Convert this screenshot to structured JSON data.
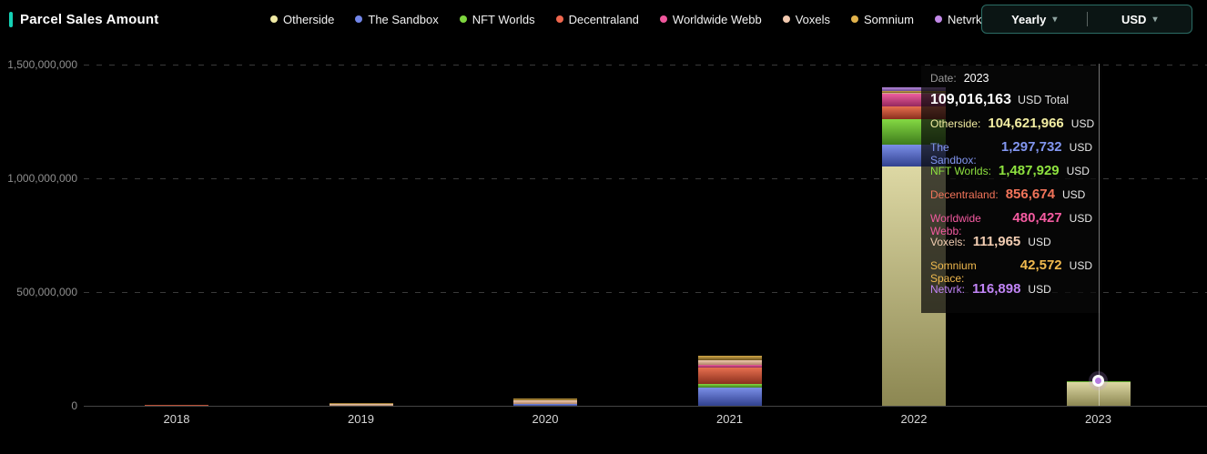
{
  "header": {
    "title": "Parcel Sales Amount",
    "accent_color": "#15d1b5",
    "legend": [
      {
        "label": "Otherside",
        "color": "#f0eaa4"
      },
      {
        "label": "The Sandbox",
        "color": "#7286e9"
      },
      {
        "label": "NFT Worlds",
        "color": "#7ed63e"
      },
      {
        "label": "Decentraland",
        "color": "#f0674e"
      },
      {
        "label": "Worldwide Webb",
        "color": "#f0579c"
      },
      {
        "label": "Voxels",
        "color": "#f3cab0"
      },
      {
        "label": "Somnium",
        "color": "#e2b34c"
      },
      {
        "label": "Netvrk",
        "color": "#c289e8"
      }
    ],
    "controls": {
      "period": "Yearly",
      "currency": "USD",
      "caret": "▾",
      "divider": "|"
    }
  },
  "chart_data": {
    "type": "bar",
    "stacked": true,
    "title": "Parcel Sales Amount",
    "categories": [
      "2018",
      "2019",
      "2020",
      "2021",
      "2022",
      "2023"
    ],
    "series": [
      {
        "name": "Otherside",
        "color_top": "#ddd8a4",
        "color_bottom": "#8c8752",
        "values": [
          0,
          0,
          0,
          0,
          1052000000,
          104621966
        ]
      },
      {
        "name": "The Sandbox",
        "color_top": "#7b8fe8",
        "color_bottom": "#31418f",
        "values": [
          0,
          0,
          8000000,
          80000000,
          96000000,
          1297732
        ]
      },
      {
        "name": "NFT Worlds",
        "color_top": "#84d943",
        "color_bottom": "#3f7d1d",
        "values": [
          0,
          0,
          0,
          16000000,
          112000000,
          1487929
        ]
      },
      {
        "name": "Decentraland",
        "color_top": "#e8704f",
        "color_bottom": "#8a2f1e",
        "values": [
          6000000,
          0,
          0,
          72000000,
          56000000,
          856674
        ]
      },
      {
        "name": "Worldwide Webb",
        "color_top": "#ee5f9e",
        "color_bottom": "#93275e",
        "values": [
          0,
          0,
          0,
          12000000,
          56000000,
          480427
        ]
      },
      {
        "name": "Voxels",
        "color_top": "#f0cbb0",
        "color_bottom": "#b08566",
        "values": [
          0,
          8000000,
          16000000,
          20000000,
          6000000,
          111965
        ]
      },
      {
        "name": "Somnium",
        "color_top": "#d2a847",
        "color_bottom": "#6b5220",
        "values": [
          0,
          6000000,
          8000000,
          20000000,
          8000000,
          42572
        ]
      },
      {
        "name": "Netvrk",
        "color_top": "#b98ade",
        "color_bottom": "#6b4a93",
        "values": [
          0,
          0,
          0,
          0,
          16000000,
          116898
        ]
      }
    ],
    "ylim": [
      0,
      1500000000
    ],
    "yticks": [
      {
        "value": 1500000000,
        "label": "1,500,000,000"
      },
      {
        "value": 1000000000,
        "label": "1,000,000,000"
      },
      {
        "value": 500000000,
        "label": "500,000,000"
      },
      {
        "value": 0,
        "label": "0"
      }
    ],
    "grid": "dashed-horizontal",
    "legend_position": "top",
    "hovered_category": "2023"
  },
  "tooltip": {
    "date_label": "Date:",
    "date_value": "2023",
    "total_value": "109,016,163",
    "total_suffix": "USD Total",
    "rows": [
      {
        "label": "Otherside:",
        "value": "104,621,966",
        "suffix": "USD",
        "color": "#f2eda2"
      },
      {
        "label": "The Sandbox:",
        "value": "1,297,732",
        "suffix": "USD",
        "color": "#8296f0"
      },
      {
        "label": "NFT Worlds:",
        "value": "1,487,929",
        "suffix": "USD",
        "color": "#8ee23f"
      },
      {
        "label": "Decentraland:",
        "value": "856,674",
        "suffix": "USD",
        "color": "#f2745a"
      },
      {
        "label": "Worldwide Webb:",
        "value": "480,427",
        "suffix": "USD",
        "color": "#f55ba1"
      },
      {
        "label": "Voxels:",
        "value": "111,965",
        "suffix": "USD",
        "color": "#f2cdb2"
      },
      {
        "label": "Somnium Space:",
        "value": "42,572",
        "suffix": "USD",
        "color": "#f0b94e"
      },
      {
        "label": "Netvrk:",
        "value": "116,898",
        "suffix": "USD",
        "color": "#c084f5"
      }
    ]
  }
}
